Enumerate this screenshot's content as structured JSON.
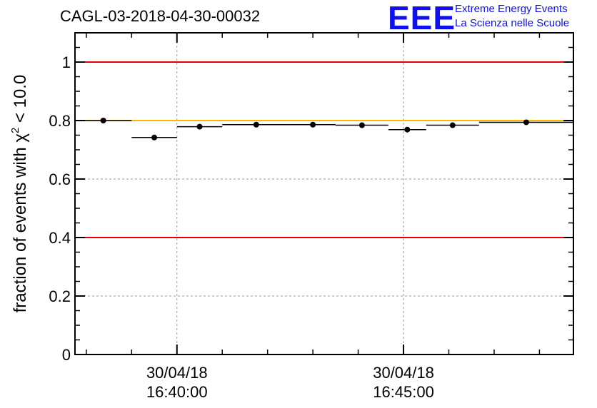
{
  "title": "CAGL-03-2018-04-30-00032",
  "logo": {
    "letters": "EEE",
    "line1": "Extreme Energy Events",
    "line2": "La Scienza nelle Scuole",
    "color": "#1010ee"
  },
  "chart_data": {
    "type": "scatter",
    "title": "CAGL-03-2018-04-30-00032",
    "ylabel_prefix": "fraction of events with ",
    "ylabel_symbol": "χ",
    "ylabel_power": "2",
    "ylabel_suffix": " < 10.0",
    "xlabel": "",
    "ylim": [
      0,
      1.1
    ],
    "yticks": [
      "0",
      "0.2",
      "0.4",
      "0.6",
      "0.8",
      "1"
    ],
    "ytick_values": [
      0,
      0.2,
      0.4,
      0.6,
      0.8,
      1.0
    ],
    "xlim": [
      "16:37:45",
      "16:48:45"
    ],
    "xticks": [
      {
        "time": "16:40:00",
        "date": "30/04/18"
      },
      {
        "time": "16:45:00",
        "date": "30/04/18"
      }
    ],
    "grid": true,
    "reference_lines": [
      {
        "value": 1.0,
        "color": "#e00000"
      },
      {
        "value": 0.8,
        "color": "#ffb400"
      },
      {
        "value": 0.4,
        "color": "#e00000"
      }
    ],
    "points": [
      {
        "t_start": "16:37:45",
        "t_end": "16:39:00",
        "y": 0.8,
        "err": 0.007
      },
      {
        "t_start": "16:39:00",
        "t_end": "16:40:00",
        "y": 0.742,
        "err": 0.008
      },
      {
        "t_start": "16:40:00",
        "t_end": "16:41:00",
        "y": 0.779,
        "err": 0.008
      },
      {
        "t_start": "16:41:00",
        "t_end": "16:42:30",
        "y": 0.786,
        "err": 0.008
      },
      {
        "t_start": "16:42:30",
        "t_end": "16:43:30",
        "y": 0.786,
        "err": 0.008
      },
      {
        "t_start": "16:43:30",
        "t_end": "16:44:40",
        "y": 0.784,
        "err": 0.008
      },
      {
        "t_start": "16:44:40",
        "t_end": "16:45:30",
        "y": 0.769,
        "err": 0.008
      },
      {
        "t_start": "16:45:30",
        "t_end": "16:46:40",
        "y": 0.784,
        "err": 0.008
      },
      {
        "t_start": "16:46:40",
        "t_end": "16:48:45",
        "y": 0.794,
        "err": 0.008
      }
    ]
  }
}
